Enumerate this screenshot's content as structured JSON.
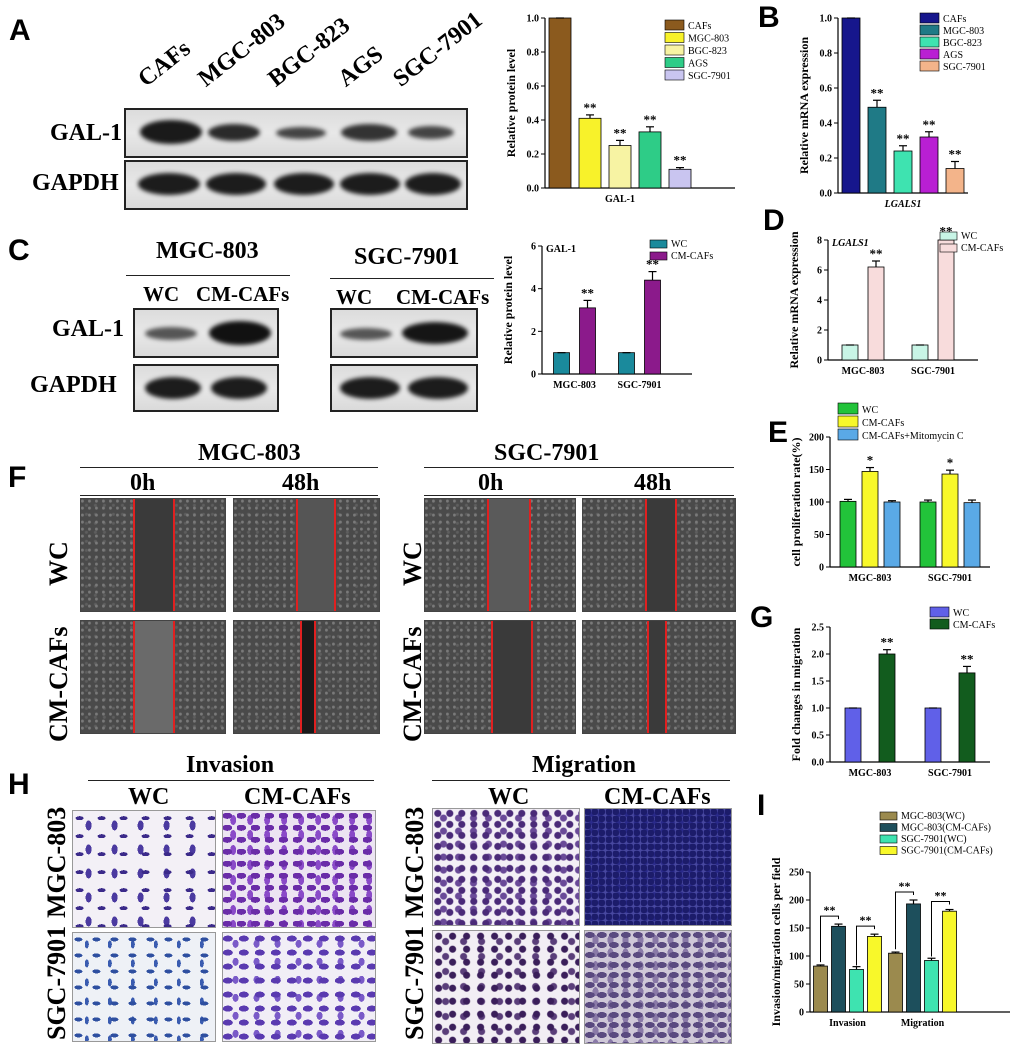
{
  "panels": {
    "A": "A",
    "B": "B",
    "C": "C",
    "D": "D",
    "E": "E",
    "F": "F",
    "G": "G",
    "H": "H",
    "I": "I"
  },
  "blotA": {
    "lanes": [
      "CAFs",
      "MGC-803",
      "BGC-823",
      "AGS",
      "SGC-7901"
    ],
    "rows": [
      "GAL-1",
      "GAPDH"
    ]
  },
  "blotC": {
    "groups": [
      "MGC-803",
      "SGC-7901"
    ],
    "lanes": [
      "WC",
      "CM-CAFs"
    ],
    "rows": [
      "GAL-1",
      "GAPDH"
    ]
  },
  "scratch": {
    "cells": [
      "MGC-803",
      "SGC-7901"
    ],
    "times": [
      "0h",
      "48h"
    ],
    "rows": [
      "WC",
      "CM-CAFs"
    ]
  },
  "transwell": {
    "assays": [
      "Invasion",
      "Migration"
    ],
    "cols": [
      "WC",
      "CM-CAFs"
    ],
    "rows": [
      "MGC-803",
      "SGC-7901"
    ]
  },
  "chart_data": [
    {
      "id": "A",
      "type": "bar",
      "ylabel": "Relative protein level",
      "xlabel": "GAL-1",
      "ylim": [
        0,
        1.0
      ],
      "yticks": [
        0.0,
        0.2,
        0.4,
        0.6,
        0.8,
        1.0
      ],
      "ytick_labels": [
        "0.0",
        "0.2",
        "0.4",
        "0.6",
        "0.8",
        "1.0"
      ],
      "categories": [
        "CAFs",
        "MGC-803",
        "BGC-823",
        "AGS",
        "SGC-7901"
      ],
      "values": [
        1.0,
        0.41,
        0.25,
        0.33,
        0.11
      ],
      "errors": [
        0,
        0.02,
        0.03,
        0.03,
        0.01
      ],
      "colors": [
        "#8b5a1e",
        "#f8f22a",
        "#f7f3a3",
        "#2ecc87",
        "#c9c5f0"
      ],
      "annotations": [
        "",
        "**",
        "**",
        "**",
        "**"
      ],
      "legend": [
        "CAFs",
        "MGC-803",
        "BGC-823",
        "AGS",
        "SGC-7901"
      ]
    },
    {
      "id": "B",
      "type": "bar",
      "ylabel": "Relative mRNA expression",
      "xlabel": "LGALS1",
      "ylim": [
        0,
        1.0
      ],
      "yticks": [
        0.0,
        0.2,
        0.4,
        0.6,
        0.8,
        1.0
      ],
      "ytick_labels": [
        "0.0",
        "0.2",
        "0.4",
        "0.6",
        "0.8",
        "1.0"
      ],
      "categories": [
        "CAFs",
        "MGC-803",
        "BGC-823",
        "AGS",
        "SGC-7901"
      ],
      "values": [
        1.0,
        0.49,
        0.24,
        0.32,
        0.14
      ],
      "errors": [
        0,
        0.04,
        0.03,
        0.03,
        0.04
      ],
      "colors": [
        "#16168c",
        "#1f7a86",
        "#3ee3b0",
        "#b91fd3",
        "#f3b48a"
      ],
      "annotations": [
        "",
        "**",
        "**",
        "**",
        "**"
      ],
      "legend": [
        "CAFs",
        "MGC-803",
        "BGC-823",
        "AGS",
        "SGC-7901"
      ]
    },
    {
      "id": "C",
      "type": "bar",
      "ylabel": "Relative protein level",
      "inner_title": "GAL-1",
      "ylim": [
        0,
        6
      ],
      "yticks": [
        0,
        2,
        4,
        6
      ],
      "ytick_labels": [
        "0",
        "2",
        "4",
        "6"
      ],
      "categories": [
        "MGC-803",
        "SGC-7901"
      ],
      "series": [
        {
          "name": "WC",
          "values": [
            1.0,
            1.0
          ],
          "errors": [
            0,
            0
          ],
          "color": "#1a8a9c"
        },
        {
          "name": "CM-CAFs",
          "values": [
            3.1,
            4.4
          ],
          "errors": [
            0.35,
            0.4
          ],
          "color": "#8b1a8b"
        }
      ],
      "annotations": [
        "**",
        "**"
      ]
    },
    {
      "id": "D",
      "type": "bar",
      "ylabel": "Relative mRNA expression",
      "inner_title": "LGALS1",
      "ylim": [
        0,
        8
      ],
      "yticks": [
        0,
        2,
        4,
        6,
        8
      ],
      "ytick_labels": [
        "0",
        "2",
        "4",
        "6",
        "8"
      ],
      "categories": [
        "MGC-803",
        "SGC-7901"
      ],
      "series": [
        {
          "name": "WC",
          "values": [
            1.0,
            1.0
          ],
          "errors": [
            0,
            0
          ],
          "color": "#c8f5e6"
        },
        {
          "name": "CM-CAFs",
          "values": [
            6.2,
            8.0
          ],
          "errors": [
            0.4,
            0.1
          ],
          "color": "#f8dcdc"
        }
      ],
      "annotations": [
        "**",
        "**"
      ]
    },
    {
      "id": "E",
      "type": "bar",
      "ylabel": "cell proliferation rate(%)",
      "ylim": [
        0,
        200
      ],
      "yticks": [
        0,
        50,
        100,
        150,
        200
      ],
      "ytick_labels": [
        "0",
        "50",
        "100",
        "150",
        "200"
      ],
      "categories": [
        "MGC-803",
        "SGC-7901"
      ],
      "series": [
        {
          "name": "WC",
          "values": [
            101,
            100
          ],
          "errors": [
            3,
            3
          ],
          "color": "#22c33a"
        },
        {
          "name": "CM-CAFs",
          "values": [
            147,
            143
          ],
          "errors": [
            6,
            6
          ],
          "color": "#f8f82a"
        },
        {
          "name": "CM-CAFs+Mitomycin C",
          "values": [
            100,
            99
          ],
          "errors": [
            2,
            4
          ],
          "color": "#5aa9e6"
        }
      ],
      "annotations": [
        "*",
        "*"
      ]
    },
    {
      "id": "G",
      "type": "bar",
      "ylabel": "Fold changes in migration",
      "ylim": [
        0,
        2.5
      ],
      "yticks": [
        0.0,
        0.5,
        1.0,
        1.5,
        2.0,
        2.5
      ],
      "ytick_labels": [
        "0.0",
        "0.5",
        "1.0",
        "1.5",
        "2.0",
        "2.5"
      ],
      "categories": [
        "MGC-803",
        "SGC-7901"
      ],
      "series": [
        {
          "name": "WC",
          "values": [
            1.0,
            1.0
          ],
          "errors": [
            0,
            0
          ],
          "color": "#6060e8"
        },
        {
          "name": "CM-CAFs",
          "values": [
            2.0,
            1.65
          ],
          "errors": [
            0.08,
            0.12
          ],
          "color": "#125c1e"
        }
      ],
      "annotations": [
        "**",
        "**"
      ]
    },
    {
      "id": "I",
      "type": "bar",
      "ylabel": "Invasion/migration cells per field",
      "ylim": [
        0,
        250
      ],
      "yticks": [
        0,
        50,
        100,
        150,
        200,
        250
      ],
      "ytick_labels": [
        "0",
        "50",
        "100",
        "150",
        "200",
        "250"
      ],
      "categories": [
        "Invasion",
        "Migration"
      ],
      "series": [
        {
          "name": "MGC-803(WC)",
          "values": [
            82,
            105
          ],
          "errors": [
            2,
            2
          ],
          "color": "#9b8a4e"
        },
        {
          "name": "MGC-803(CM-CAFs)",
          "values": [
            153,
            193
          ],
          "errors": [
            4,
            7
          ],
          "color": "#1d4f5c"
        },
        {
          "name": "SGC-7901(WC)",
          "values": [
            76,
            92
          ],
          "errors": [
            5,
            4
          ],
          "color": "#3ee3b0"
        },
        {
          "name": "SGC-7901(CM-CAFs)",
          "values": [
            135,
            180
          ],
          "errors": [
            4,
            3
          ],
          "color": "#f8f82a"
        }
      ],
      "annotations": [
        "**",
        "**",
        "**",
        "**"
      ]
    }
  ]
}
